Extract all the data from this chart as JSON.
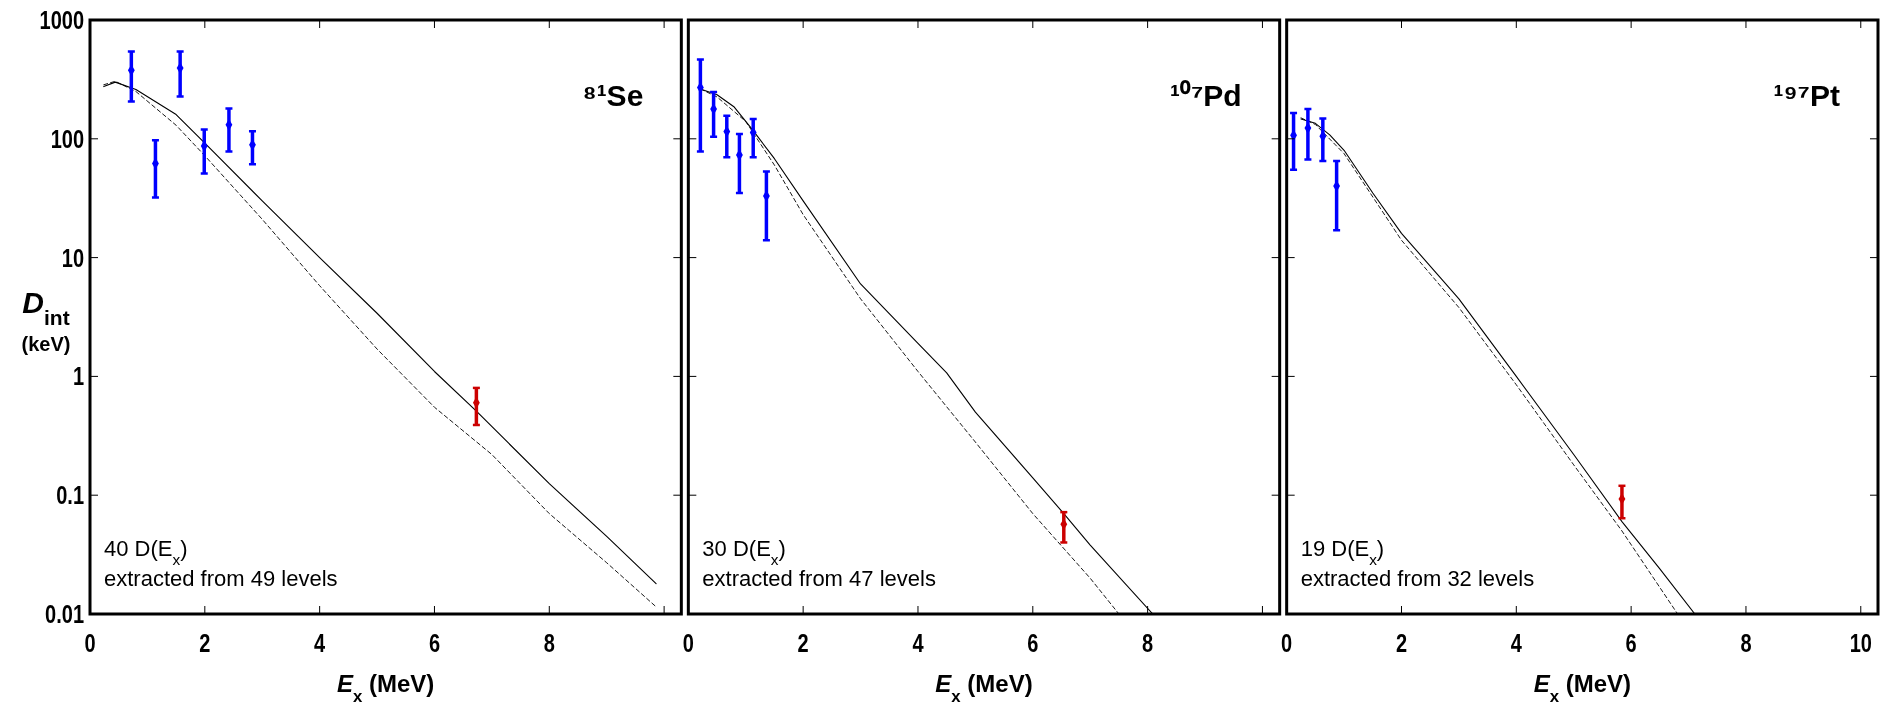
{
  "chart_data": [
    {
      "type": "scatter",
      "title": "⁸¹Se",
      "xlabel": "E$_{x}$ (MeV)",
      "ylabel": "D$_{int}$ (keV)",
      "log": "y",
      "xlim": [
        0,
        10.3
      ],
      "xticks": [
        0,
        2,
        4,
        6,
        8,
        {
          "value": 10,
          "label": null
        }
      ],
      "ylim": [
        0.01,
        1000
      ],
      "yticks": [
        0.01,
        0.1,
        1,
        10,
        100,
        1000
      ],
      "annotations": [
        "40 D(E$_{x}$)",
        "extracted from 49 levels"
      ],
      "series": [
        {
          "type": "line",
          "color": "#000000",
          "line_style": "solid",
          "x": [
            0.24,
            0.44,
            0.8,
            1.5,
            2,
            3,
            4,
            5,
            6,
            6.73,
            8,
            9,
            9.86
          ],
          "values": [
            275,
            300,
            260,
            160,
            92,
            30,
            10,
            3.4,
            1.1,
            0.51,
            0.125,
            0.045,
            0.018
          ]
        },
        {
          "type": "line",
          "color": "#000000",
          "line_style": "dashed",
          "x": [
            0.24,
            0.44,
            0.8,
            1.5,
            2,
            3,
            4,
            5,
            6,
            7,
            8,
            9,
            9.86
          ],
          "values": [
            285,
            305,
            250,
            130,
            72,
            21,
            5.8,
            1.7,
            0.55,
            0.22,
            0.07,
            0.027,
            0.0115
          ]
        },
        {
          "color": "#0000ff",
          "marker": "diamond",
          "x": [
            0.72,
            1.14,
            1.57,
            1.99,
            2.42,
            2.83
          ],
          "values": [
            377,
            62,
            394,
            87,
            131,
            89
          ],
          "errors": [
            [
              206,
              543
            ],
            [
              32,
              97
            ],
            [
              227,
              543
            ],
            [
              51,
              120
            ],
            [
              78,
              180
            ],
            [
              61,
              116
            ]
          ]
        },
        {
          "color": "#cc0000",
          "marker": "diamond",
          "x": [
            6.73
          ],
          "values": [
            0.6
          ],
          "errors": [
            [
              0.39,
              0.8
            ]
          ]
        }
      ]
    },
    {
      "type": "scatter",
      "title": "¹⁰⁷Pd",
      "xlabel": "E$_{x}$ (MeV)",
      "log": "y",
      "xlim": [
        0,
        10.3
      ],
      "xticks": [
        0,
        2,
        4,
        6,
        8,
        {
          "value": 10,
          "label": null
        }
      ],
      "ylim": [
        0.01,
        1000
      ],
      "yticks": [
        0.01,
        0.1,
        1,
        10,
        100,
        1000
      ],
      "tick_labels": "x",
      "annotations": [
        "30 D(E$_{x}$)",
        "extracted from 47 levels"
      ],
      "series": [
        {
          "type": "line",
          "color": "#000000",
          "line_style": "solid",
          "x": [
            0.21,
            0.5,
            0.8,
            1.13,
            1.5,
            2,
            3,
            4,
            4.5,
            5,
            6,
            6.54,
            7,
            8.09
          ],
          "values": [
            263,
            235,
            185,
            117,
            68,
            30,
            6,
            1.9,
            1.07,
            0.5,
            0.14,
            0.07,
            0.038,
            0.01
          ]
        },
        {
          "type": "line",
          "color": "#000000",
          "line_style": "dashed",
          "x": [
            0.21,
            0.5,
            1,
            1.5,
            2,
            3,
            4,
            5,
            6,
            7,
            7.5
          ],
          "values": [
            263,
            225,
            140,
            60,
            23,
            4.5,
            1.1,
            0.28,
            0.07,
            0.02,
            0.01
          ]
        },
        {
          "color": "#0000ff",
          "marker": "diamond",
          "x": [
            0.21,
            0.44,
            0.67,
            0.89,
            1.13,
            1.36
          ],
          "values": [
            270,
            178,
            115,
            73,
            113,
            33
          ],
          "errors": [
            [
              78,
              464
            ],
            [
              104,
              248
            ],
            [
              70,
              156
            ],
            [
              35,
              110
            ],
            [
              70,
              147
            ],
            [
              14,
              53
            ]
          ]
        },
        {
          "color": "#cc0000",
          "marker": "diamond",
          "x": [
            6.54
          ],
          "values": [
            0.057
          ],
          "errors": [
            [
              0.04,
              0.072
            ]
          ]
        }
      ]
    },
    {
      "type": "scatter",
      "title": "¹⁹⁷Pt",
      "xlabel": "E$_{x}$ (MeV)",
      "log": "y",
      "xlim": [
        0,
        10.3
      ],
      "xticks": [
        0,
        2,
        4,
        6,
        8,
        10
      ],
      "ylim": [
        0.01,
        1000
      ],
      "yticks": [
        0.01,
        0.1,
        1,
        10,
        100,
        1000
      ],
      "tick_labels": "x",
      "annotations": [
        "19 D(E$_{x}$)",
        "extracted from 32 levels"
      ],
      "series": [
        {
          "type": "line",
          "color": "#000000",
          "line_style": "solid",
          "x": [
            0.25,
            0.5,
            0.75,
            1,
            1.5,
            2,
            3,
            4,
            5,
            5.84,
            6.5,
            7.11
          ],
          "values": [
            147,
            135,
            108,
            80,
            35,
            16,
            4.5,
            1.0,
            0.22,
            0.06,
            0.024,
            0.01
          ]
        },
        {
          "type": "line",
          "color": "#000000",
          "line_style": "dashed",
          "x": [
            0.25,
            0.5,
            1,
            2,
            3,
            4,
            5,
            5.84,
            6.81
          ],
          "values": [
            150,
            132,
            75,
            14,
            3.8,
            0.85,
            0.18,
            0.05,
            0.01
          ]
        },
        {
          "color": "#0000ff",
          "marker": "diamond",
          "x": [
            0.12,
            0.37,
            0.63,
            0.87
          ],
          "values": [
            107,
            123,
            105,
            40
          ],
          "errors": [
            [
              55,
              165
            ],
            [
              67,
              178
            ],
            [
              65,
              148
            ],
            [
              17,
              65
            ]
          ]
        },
        {
          "color": "#cc0000",
          "marker": "diamond",
          "x": [
            5.84
          ],
          "values": [
            0.093
          ],
          "errors": [
            [
              0.064,
              0.12
            ]
          ]
        }
      ]
    }
  ]
}
